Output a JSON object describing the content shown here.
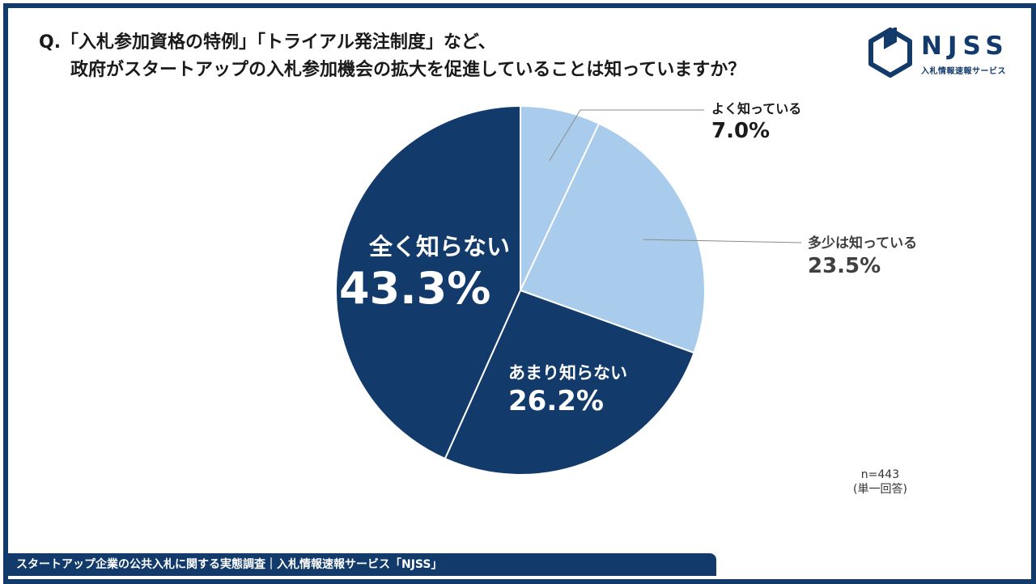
{
  "question": {
    "line1": "Q.「入札参加資格の特例」「トライアル発注制度」など、",
    "line2": "政府がスタートアップの入札参加機会の拡大を促進していることは知っていますか？"
  },
  "logo": {
    "word": "NJSS",
    "sub": "入札情報速報サービス"
  },
  "chart_data": {
    "type": "pie",
    "title": "",
    "start": "12 o'clock",
    "direction": "clockwise",
    "slices": [
      {
        "label": "よく知っている",
        "value": 7.0,
        "display": "7.0%",
        "color": "#a9cbec",
        "label_style": "external"
      },
      {
        "label": "多少は知っている",
        "value": 23.5,
        "display": "23.5%",
        "color": "#a9cbec",
        "label_style": "external"
      },
      {
        "label": "あまり知らない",
        "value": 26.2,
        "display": "26.2%",
        "color": "#123a6b",
        "label_style": "internal"
      },
      {
        "label": "全く知らない",
        "value": 43.3,
        "display": "43.3%",
        "color": "#123a6b",
        "label_style": "internal-large"
      }
    ]
  },
  "note": {
    "n": "n=443",
    "type": "(単一回答)"
  },
  "footer": "スタートアップ企業の公共入札に関する実態調査｜入札情報速報サービス「NJSS」",
  "colors": {
    "frame": "#123a6b",
    "dark": "#123a6b",
    "light": "#a9cbec"
  }
}
